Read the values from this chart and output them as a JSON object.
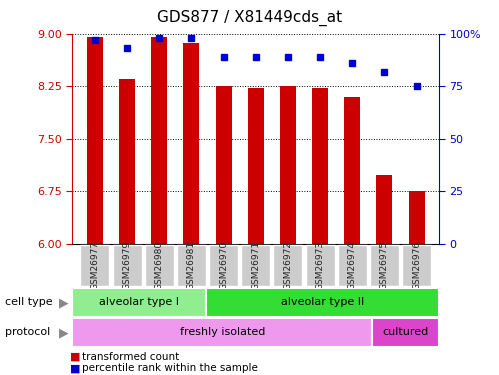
{
  "title": "GDS877 / X81449cds_at",
  "samples": [
    "GSM26977",
    "GSM26979",
    "GSM26980",
    "GSM26981",
    "GSM26970",
    "GSM26971",
    "GSM26972",
    "GSM26973",
    "GSM26974",
    "GSM26975",
    "GSM26976"
  ],
  "transformed_counts": [
    8.95,
    8.35,
    8.95,
    8.87,
    8.25,
    8.23,
    8.26,
    8.23,
    8.1,
    6.98,
    6.75
  ],
  "percentile_ranks": [
    97,
    93,
    98,
    98,
    89,
    89,
    89,
    89,
    86,
    82,
    75
  ],
  "ylim_left": [
    6,
    9
  ],
  "ylim_right": [
    0,
    100
  ],
  "yticks_left": [
    6,
    6.75,
    7.5,
    8.25,
    9
  ],
  "yticks_right": [
    0,
    25,
    50,
    75,
    100
  ],
  "bar_color": "#cc0000",
  "dot_color": "#0000cc",
  "cell_type_labels": [
    {
      "label": "alveolar type I",
      "start": 0,
      "end": 4,
      "color": "#90ee90"
    },
    {
      "label": "alveolar type II",
      "start": 4,
      "end": 11,
      "color": "#33dd33"
    }
  ],
  "protocol_labels": [
    {
      "label": "freshly isolated",
      "start": 0,
      "end": 9,
      "color": "#ee99ee"
    },
    {
      "label": "cultured",
      "start": 9,
      "end": 11,
      "color": "#dd44cc"
    }
  ],
  "legend_items": [
    {
      "label": "transformed count",
      "color": "#cc0000"
    },
    {
      "label": "percentile rank within the sample",
      "color": "#0000cc"
    }
  ],
  "left_axis_color": "#cc0000",
  "right_axis_color": "#0000cc",
  "grid_color": "#000000",
  "sample_box_color": "#cccccc",
  "background_color": "#ffffff",
  "title_fontsize": 11,
  "bar_width": 0.5
}
